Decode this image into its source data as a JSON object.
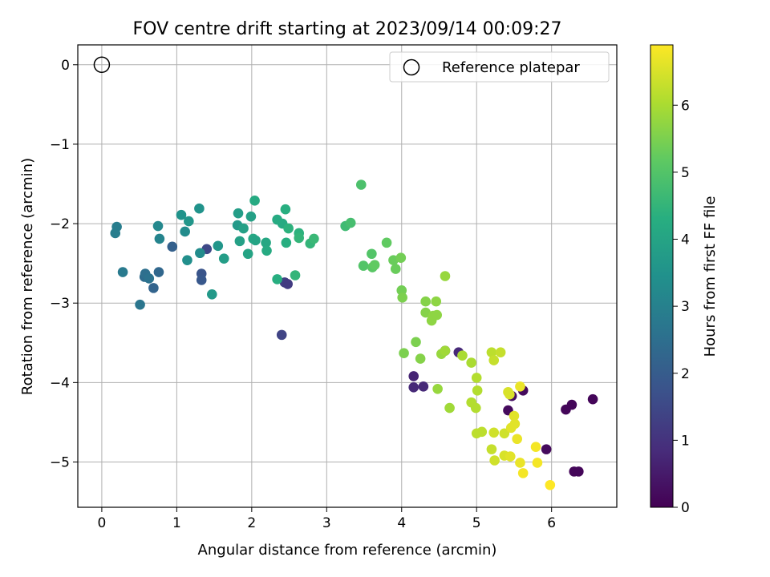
{
  "chart_data": {
    "type": "scatter",
    "title": "FOV centre drift starting at 2023/09/14 00:09:27",
    "xlabel": "Angular distance from reference (arcmin)",
    "ylabel": "Rotation from reference (arcmin)",
    "xlim": [
      -0.32,
      6.87
    ],
    "ylim": [
      -5.57,
      0.25
    ],
    "xticks": [
      "0",
      "1",
      "2",
      "3",
      "4",
      "5",
      "6"
    ],
    "yticks": [
      "0",
      "−1",
      "−2",
      "−3",
      "−4",
      "−5"
    ],
    "grid": true,
    "legend": {
      "placement": "top-right",
      "label": "Reference platepar"
    },
    "reference_point": {
      "x": 0,
      "y": 0
    },
    "colorbar": {
      "label": "Hours from first FF file",
      "range": [
        0,
        6.9
      ],
      "ticks": [
        "0",
        "1",
        "2",
        "3",
        "4",
        "5",
        "6"
      ],
      "colormap": "viridis"
    },
    "points": [
      {
        "x": 5.47,
        "y": -4.17,
        "h": 0.3
      },
      {
        "x": 5.62,
        "y": -4.1,
        "h": 0.2
      },
      {
        "x": 5.42,
        "y": -4.35,
        "h": 0.2
      },
      {
        "x": 6.55,
        "y": -4.21,
        "h": 0.1
      },
      {
        "x": 6.27,
        "y": -4.28,
        "h": 0.1
      },
      {
        "x": 6.19,
        "y": -4.34,
        "h": 0.1
      },
      {
        "x": 5.93,
        "y": -4.84,
        "h": 0.2
      },
      {
        "x": 6.3,
        "y": -5.12,
        "h": 0.1
      },
      {
        "x": 6.36,
        "y": -5.12,
        "h": 0.1
      },
      {
        "x": 4.16,
        "y": -3.92,
        "h": 0.7
      },
      {
        "x": 4.16,
        "y": -4.06,
        "h": 0.8
      },
      {
        "x": 4.29,
        "y": -4.05,
        "h": 0.8
      },
      {
        "x": 4.58,
        "y": -3.6,
        "h": 0.9
      },
      {
        "x": 4.76,
        "y": -3.62,
        "h": 0.8
      },
      {
        "x": 2.4,
        "y": -3.4,
        "h": 1.4
      },
      {
        "x": 2.44,
        "y": -2.74,
        "h": 1.3
      },
      {
        "x": 2.48,
        "y": -2.76,
        "h": 1.2
      },
      {
        "x": 1.4,
        "y": -2.32,
        "h": 1.5
      },
      {
        "x": 1.33,
        "y": -2.63,
        "h": 1.8
      },
      {
        "x": 1.33,
        "y": -2.71,
        "h": 1.9
      },
      {
        "x": 0.94,
        "y": -2.29,
        "h": 2.1
      },
      {
        "x": 0.69,
        "y": -2.81,
        "h": 2.2
      },
      {
        "x": 0.76,
        "y": -2.61,
        "h": 2.3
      },
      {
        "x": 0.57,
        "y": -2.67,
        "h": 2.4
      },
      {
        "x": 0.58,
        "y": -2.63,
        "h": 2.5
      },
      {
        "x": 0.63,
        "y": -2.69,
        "h": 2.6
      },
      {
        "x": 0.51,
        "y": -3.02,
        "h": 2.7
      },
      {
        "x": 0.28,
        "y": -2.61,
        "h": 2.8
      },
      {
        "x": 0.18,
        "y": -2.12,
        "h": 2.9
      },
      {
        "x": 0.2,
        "y": -2.04,
        "h": 2.9
      },
      {
        "x": 0.77,
        "y": -2.19,
        "h": 3.1
      },
      {
        "x": 0.75,
        "y": -2.03,
        "h": 3.2
      },
      {
        "x": 1.11,
        "y": -2.1,
        "h": 3.3
      },
      {
        "x": 1.14,
        "y": -2.46,
        "h": 3.4
      },
      {
        "x": 1.31,
        "y": -2.37,
        "h": 3.3
      },
      {
        "x": 1.06,
        "y": -1.89,
        "h": 3.5
      },
      {
        "x": 1.16,
        "y": -1.97,
        "h": 3.6
      },
      {
        "x": 1.3,
        "y": -1.81,
        "h": 3.5
      },
      {
        "x": 1.47,
        "y": -2.89,
        "h": 3.7
      },
      {
        "x": 1.55,
        "y": -2.28,
        "h": 3.6
      },
      {
        "x": 1.63,
        "y": -2.44,
        "h": 3.8
      },
      {
        "x": 1.82,
        "y": -1.87,
        "h": 3.8
      },
      {
        "x": 1.81,
        "y": -2.02,
        "h": 3.7
      },
      {
        "x": 1.84,
        "y": -2.22,
        "h": 3.9
      },
      {
        "x": 1.89,
        "y": -2.06,
        "h": 3.9
      },
      {
        "x": 1.95,
        "y": -2.38,
        "h": 4.0
      },
      {
        "x": 1.99,
        "y": -1.91,
        "h": 3.9
      },
      {
        "x": 2.02,
        "y": -2.19,
        "h": 4.1
      },
      {
        "x": 2.05,
        "y": -2.21,
        "h": 4.0
      },
      {
        "x": 2.04,
        "y": -1.71,
        "h": 4.2
      },
      {
        "x": 2.19,
        "y": -2.24,
        "h": 4.1
      },
      {
        "x": 2.2,
        "y": -2.34,
        "h": 4.2
      },
      {
        "x": 2.34,
        "y": -1.95,
        "h": 4.2
      },
      {
        "x": 2.34,
        "y": -2.7,
        "h": 4.3
      },
      {
        "x": 2.41,
        "y": -2.0,
        "h": 4.2
      },
      {
        "x": 2.45,
        "y": -1.82,
        "h": 4.3
      },
      {
        "x": 2.46,
        "y": -2.24,
        "h": 4.3
      },
      {
        "x": 2.49,
        "y": -2.06,
        "h": 4.4
      },
      {
        "x": 2.58,
        "y": -2.65,
        "h": 4.5
      },
      {
        "x": 2.63,
        "y": -2.12,
        "h": 4.4
      },
      {
        "x": 2.63,
        "y": -2.18,
        "h": 4.5
      },
      {
        "x": 2.78,
        "y": -2.25,
        "h": 4.5
      },
      {
        "x": 2.83,
        "y": -2.19,
        "h": 4.6
      },
      {
        "x": 3.25,
        "y": -2.03,
        "h": 4.7
      },
      {
        "x": 3.32,
        "y": -1.99,
        "h": 4.8
      },
      {
        "x": 3.46,
        "y": -1.51,
        "h": 4.9
      },
      {
        "x": 3.49,
        "y": -2.53,
        "h": 5.0
      },
      {
        "x": 3.6,
        "y": -2.38,
        "h": 5.0
      },
      {
        "x": 3.61,
        "y": -2.55,
        "h": 5.1
      },
      {
        "x": 3.64,
        "y": -2.52,
        "h": 5.2
      },
      {
        "x": 3.8,
        "y": -2.24,
        "h": 5.2
      },
      {
        "x": 3.89,
        "y": -2.46,
        "h": 5.3
      },
      {
        "x": 3.92,
        "y": -2.57,
        "h": 5.3
      },
      {
        "x": 3.99,
        "y": -2.43,
        "h": 5.4
      },
      {
        "x": 4.0,
        "y": -2.84,
        "h": 5.4
      },
      {
        "x": 4.01,
        "y": -2.93,
        "h": 5.5
      },
      {
        "x": 4.03,
        "y": -3.63,
        "h": 5.5
      },
      {
        "x": 4.19,
        "y": -3.49,
        "h": 5.5
      },
      {
        "x": 4.25,
        "y": -3.7,
        "h": 5.6
      },
      {
        "x": 4.32,
        "y": -2.98,
        "h": 5.6
      },
      {
        "x": 4.32,
        "y": -3.12,
        "h": 5.6
      },
      {
        "x": 4.4,
        "y": -3.22,
        "h": 5.7
      },
      {
        "x": 4.42,
        "y": -3.16,
        "h": 5.7
      },
      {
        "x": 4.46,
        "y": -2.98,
        "h": 5.7
      },
      {
        "x": 4.47,
        "y": -3.15,
        "h": 5.7
      },
      {
        "x": 4.48,
        "y": -4.08,
        "h": 5.8
      },
      {
        "x": 4.53,
        "y": -3.64,
        "h": 5.8
      },
      {
        "x": 4.58,
        "y": -2.66,
        "h": 5.8
      },
      {
        "x": 4.58,
        "y": -3.6,
        "h": 5.9
      },
      {
        "x": 4.64,
        "y": -4.32,
        "h": 5.9
      },
      {
        "x": 4.81,
        "y": -3.66,
        "h": 6.0
      },
      {
        "x": 4.93,
        "y": -3.75,
        "h": 6.0
      },
      {
        "x": 4.93,
        "y": -4.25,
        "h": 6.1
      },
      {
        "x": 4.99,
        "y": -4.32,
        "h": 6.1
      },
      {
        "x": 5.0,
        "y": -3.94,
        "h": 6.1
      },
      {
        "x": 5.01,
        "y": -4.1,
        "h": 6.1
      },
      {
        "x": 5.0,
        "y": -4.64,
        "h": 6.2
      },
      {
        "x": 5.07,
        "y": -4.62,
        "h": 6.2
      },
      {
        "x": 5.2,
        "y": -3.62,
        "h": 6.2
      },
      {
        "x": 5.23,
        "y": -3.72,
        "h": 6.3
      },
      {
        "x": 5.32,
        "y": -3.62,
        "h": 6.3
      },
      {
        "x": 5.2,
        "y": -4.84,
        "h": 6.3
      },
      {
        "x": 5.24,
        "y": -4.98,
        "h": 6.4
      },
      {
        "x": 5.23,
        "y": -4.63,
        "h": 6.4
      },
      {
        "x": 5.37,
        "y": -4.64,
        "h": 6.4
      },
      {
        "x": 5.37,
        "y": -4.92,
        "h": 6.5
      },
      {
        "x": 5.42,
        "y": -4.12,
        "h": 6.5
      },
      {
        "x": 5.44,
        "y": -4.15,
        "h": 6.5
      },
      {
        "x": 5.46,
        "y": -4.57,
        "h": 6.6
      },
      {
        "x": 5.45,
        "y": -4.93,
        "h": 6.6
      },
      {
        "x": 5.5,
        "y": -4.42,
        "h": 6.6
      },
      {
        "x": 5.51,
        "y": -4.52,
        "h": 6.6
      },
      {
        "x": 5.54,
        "y": -4.71,
        "h": 6.7
      },
      {
        "x": 5.58,
        "y": -4.05,
        "h": 6.7
      },
      {
        "x": 5.58,
        "y": -5.01,
        "h": 6.7
      },
      {
        "x": 5.62,
        "y": -5.14,
        "h": 6.8
      },
      {
        "x": 5.79,
        "y": -4.81,
        "h": 6.8
      },
      {
        "x": 5.81,
        "y": -5.01,
        "h": 6.8
      },
      {
        "x": 5.98,
        "y": -5.29,
        "h": 6.9
      }
    ]
  }
}
